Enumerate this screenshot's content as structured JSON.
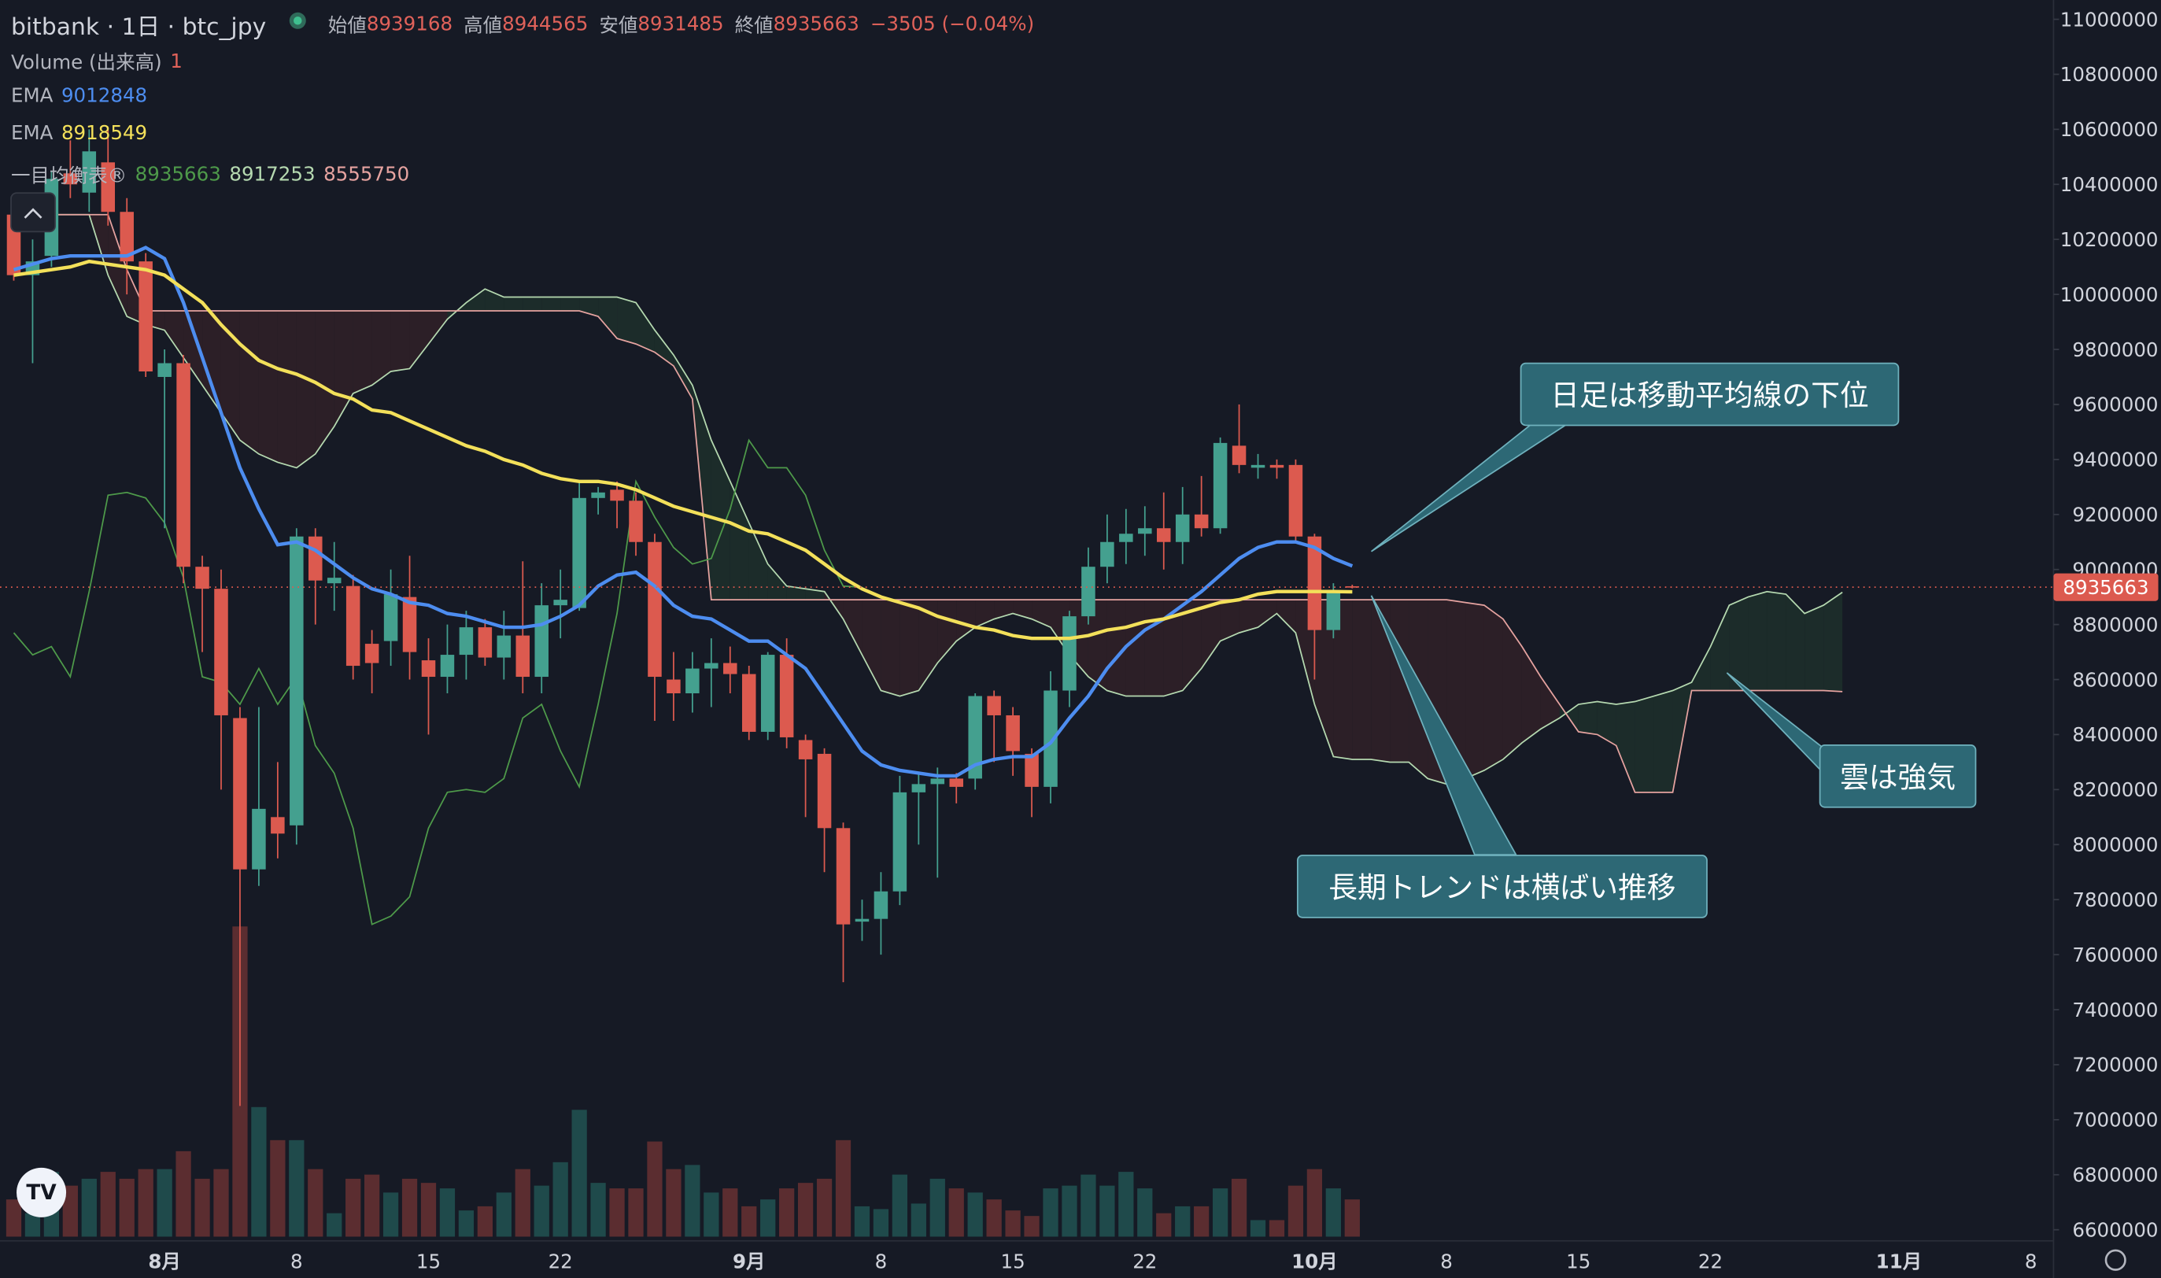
{
  "header": {
    "symbol": "bitbank · 1日 · btc_jpy",
    "open_label": "始値",
    "high_label": "高値",
    "low_label": "安値",
    "close_label": "終値",
    "change": "−3505 (−0.04%)"
  },
  "indicators": {
    "volume_label": "Volume (出来高)",
    "volume_value": 1
  },
  "chart_data": {
    "type": "candlestick",
    "xlim": [
      -0.73,
      108.2
    ],
    "ylim": [
      6600000,
      11000000
    ],
    "yticks": [
      6600000,
      6800000,
      7000000,
      7200000,
      7400000,
      7600000,
      7800000,
      8000000,
      8200000,
      8400000,
      8600000,
      8800000,
      9000000,
      9200000,
      9400000,
      9600000,
      9800000,
      10000000,
      10200000,
      10400000,
      10600000,
      10800000,
      11000000
    ],
    "xticks": [
      {
        "value": 8,
        "label": "8月"
      },
      {
        "value": 15,
        "label": "8"
      },
      {
        "value": 22,
        "label": "15"
      },
      {
        "value": 29,
        "label": "22"
      },
      {
        "value": 39,
        "label": "9月"
      },
      {
        "value": 46,
        "label": "8"
      },
      {
        "value": 53,
        "label": "15"
      },
      {
        "value": 60,
        "label": "22"
      },
      {
        "value": 69,
        "label": "10月"
      },
      {
        "value": 76,
        "label": "8"
      },
      {
        "value": 83,
        "label": "15"
      },
      {
        "value": 90,
        "label": "22"
      },
      {
        "value": 100,
        "label": "11月"
      },
      {
        "value": 107,
        "label": "8"
      }
    ],
    "up_color": "#44a08f",
    "down_color": "#dc5a4f",
    "open": [
      10290000,
      10070000,
      10140000,
      10440000,
      10370000,
      10480000,
      10300000,
      10120000,
      9700000,
      9750000,
      9010000,
      8930000,
      8460000,
      7910000,
      8100000,
      8070000,
      9120000,
      8950000,
      8940000,
      8730000,
      8740000,
      8900000,
      8670000,
      8610000,
      8690000,
      8790000,
      8680000,
      8760000,
      8610000,
      8870000,
      8860000,
      9260000,
      9290000,
      9250000,
      9100000,
      8600000,
      8550000,
      8640000,
      8660000,
      8620000,
      8410000,
      8690000,
      8380000,
      8330000,
      8060000,
      7720000,
      7730000,
      7830000,
      8190000,
      8220000,
      8240000,
      8240000,
      8540000,
      8470000,
      8330000,
      8210000,
      8560000,
      8830000,
      9010000,
      9100000,
      9130000,
      9150000,
      9100000,
      9200000,
      9150000,
      9450000,
      9370000,
      9380000,
      9380000,
      9120000,
      8780000,
      8939168
    ],
    "high": [
      10300000,
      10200000,
      10450000,
      10560000,
      10600000,
      10600000,
      10350000,
      10150000,
      9800000,
      9780000,
      9050000,
      9000000,
      8500000,
      8500000,
      8300000,
      9150000,
      9150000,
      9100000,
      8980000,
      8780000,
      9000000,
      9050000,
      8750000,
      8800000,
      8850000,
      8820000,
      8850000,
      9030000,
      8950000,
      9000000,
      9320000,
      9300000,
      9320000,
      9280000,
      9130000,
      8700000,
      8700000,
      8750000,
      8720000,
      8650000,
      8700000,
      8750000,
      8400000,
      8350000,
      8080000,
      7800000,
      7900000,
      8250000,
      8260000,
      8280000,
      8260000,
      8550000,
      8560000,
      8500000,
      8350000,
      8630000,
      8850000,
      9080000,
      9200000,
      9220000,
      9230000,
      9280000,
      9300000,
      9340000,
      9480000,
      9600000,
      9420000,
      9400000,
      9400000,
      9130000,
      8950000,
      8944565
    ],
    "low": [
      10050000,
      9750000,
      10100000,
      10350000,
      10300000,
      10250000,
      10000000,
      9700000,
      9150000,
      8950000,
      8700000,
      8200000,
      7050000,
      7850000,
      7950000,
      8000000,
      8800000,
      8850000,
      8600000,
      8550000,
      8650000,
      8600000,
      8400000,
      8550000,
      8600000,
      8650000,
      8600000,
      8550000,
      8550000,
      8750000,
      8850000,
      9200000,
      9150000,
      9050000,
      8450000,
      8450000,
      8480000,
      8500000,
      8550000,
      8380000,
      8380000,
      8350000,
      8100000,
      7900000,
      7500000,
      7650000,
      7600000,
      7780000,
      8000000,
      7880000,
      8150000,
      8200000,
      8300000,
      8250000,
      8100000,
      8150000,
      8500000,
      8800000,
      8950000,
      9020000,
      9050000,
      9000000,
      9020000,
      9120000,
      9130000,
      9350000,
      9330000,
      9330000,
      9100000,
      8600000,
      8750000,
      8931485
    ],
    "close": [
      10070000,
      10120000,
      10420000,
      10400000,
      10520000,
      10300000,
      10120000,
      9720000,
      9750000,
      9010000,
      8930000,
      8470000,
      7910000,
      8130000,
      8040000,
      9120000,
      8960000,
      8970000,
      8650000,
      8660000,
      8910000,
      8700000,
      8610000,
      8690000,
      8790000,
      8680000,
      8760000,
      8610000,
      8870000,
      8890000,
      9260000,
      9280000,
      9250000,
      9100000,
      8610000,
      8550000,
      8640000,
      8660000,
      8620000,
      8410000,
      8690000,
      8390000,
      8310000,
      8060000,
      7710000,
      7730000,
      7830000,
      8190000,
      8220000,
      8240000,
      8210000,
      8540000,
      8470000,
      8340000,
      8210000,
      8560000,
      8830000,
      9010000,
      9100000,
      9130000,
      9150000,
      9100000,
      9200000,
      9150000,
      9460000,
      9380000,
      9380000,
      9370000,
      9120000,
      8780000,
      8920000,
      8935663
    ],
    "volume": {
      "vlim": [
        0,
        300
      ],
      "up_color": "#1f4a4b",
      "down_color": "#5b2d30",
      "values": [
        27,
        17,
        47,
        37,
        42,
        47,
        42,
        49,
        49,
        62,
        42,
        49,
        225,
        94,
        70,
        70,
        49,
        17,
        42,
        45,
        32,
        42,
        39,
        35,
        19,
        22,
        32,
        49,
        37,
        54,
        92,
        39,
        35,
        35,
        69,
        49,
        52,
        32,
        35,
        22,
        27,
        35,
        39,
        42,
        70,
        22,
        20,
        45,
        24,
        42,
        35,
        32,
        27,
        19,
        15,
        35,
        37,
        45,
        37,
        47,
        35,
        17,
        22,
        22,
        35,
        42,
        12,
        12,
        37,
        49,
        35,
        27
      ]
    },
    "series": [
      {
        "name": "EMA",
        "color": "#4d8df0",
        "values": [
          10090000,
          10110000,
          10130000,
          10140000,
          10140000,
          10140000,
          10140000,
          10170000,
          10130000,
          9970000,
          9770000,
          9570000,
          9370000,
          9220000,
          9090000,
          9100000,
          9070000,
          9020000,
          8970000,
          8930000,
          8910000,
          8880000,
          8870000,
          8840000,
          8830000,
          8810000,
          8790000,
          8790000,
          8800000,
          8830000,
          8870000,
          8940000,
          8980000,
          8990000,
          8940000,
          8870000,
          8830000,
          8820000,
          8780000,
          8740000,
          8740000,
          8690000,
          8640000,
          8540000,
          8440000,
          8340000,
          8290000,
          8270000,
          8260000,
          8250000,
          8250000,
          8290000,
          8310000,
          8320000,
          8320000,
          8370000,
          8460000,
          8540000,
          8640000,
          8720000,
          8780000,
          8820000,
          8870000,
          8920000,
          8980000,
          9040000,
          9080000,
          9100000,
          9100000,
          9080000,
          9040000,
          9012848
        ]
      },
      {
        "name": "EMA",
        "color": "#f3e05a",
        "values": [
          10070000,
          10080000,
          10090000,
          10100000,
          10120000,
          10110000,
          10100000,
          10090000,
          10070000,
          10020000,
          9970000,
          9890000,
          9820000,
          9760000,
          9730000,
          9710000,
          9680000,
          9640000,
          9620000,
          9580000,
          9570000,
          9540000,
          9510000,
          9480000,
          9450000,
          9430000,
          9400000,
          9380000,
          9350000,
          9330000,
          9320000,
          9320000,
          9310000,
          9290000,
          9260000,
          9230000,
          9210000,
          9190000,
          9170000,
          9140000,
          9130000,
          9100000,
          9070000,
          9020000,
          8970000,
          8930000,
          8900000,
          8880000,
          8860000,
          8830000,
          8810000,
          8790000,
          8780000,
          8760000,
          8750000,
          8750000,
          8750000,
          8760000,
          8780000,
          8790000,
          8810000,
          8820000,
          8840000,
          8860000,
          8880000,
          8890000,
          8910000,
          8920000,
          8920000,
          8920000,
          8920000,
          8918549
        ]
      }
    ],
    "ichimoku": {
      "name": "一目均衡表®",
      "lagging_color": "#4e9a4a",
      "span_a_color": "#b5d9b0",
      "span_b_color": "#e6a3a0",
      "cloud_up_color": "#1c2c2a",
      "cloud_down_color": "#2c1f27",
      "lagging": [
        8770000,
        8690000,
        8720000,
        8610000,
        8920000,
        9270000,
        9280000,
        9260000,
        9170000,
        8970000,
        8610000,
        8590000,
        8510000,
        8640000,
        8510000,
        8610000,
        8360000,
        8260000,
        8060000,
        7710000,
        7740000,
        7810000,
        8060000,
        8190000,
        8200000,
        8190000,
        8240000,
        8460000,
        8510000,
        8340000,
        8210000,
        8510000,
        8840000,
        9320000,
        9190000,
        9080000,
        9020000,
        9040000,
        9220000,
        9470000,
        9370000,
        9370000,
        9270000,
        9070000,
        8940000,
        8935663
      ],
      "span_a": [
        10290000,
        10290000,
        10290000,
        10290000,
        10290000,
        10070000,
        9920000,
        9890000,
        9870000,
        9770000,
        9670000,
        9570000,
        9470000,
        9420000,
        9390000,
        9370000,
        9420000,
        9520000,
        9640000,
        9670000,
        9720000,
        9730000,
        9820000,
        9910000,
        9970000,
        10020000,
        9990000,
        9990000,
        9990000,
        9990000,
        9990000,
        9990000,
        9990000,
        9970000,
        9870000,
        9780000,
        9670000,
        9470000,
        9320000,
        9170000,
        9020000,
        8940000,
        8930000,
        8920000,
        8820000,
        8690000,
        8560000,
        8540000,
        8560000,
        8660000,
        8740000,
        8790000,
        8820000,
        8840000,
        8820000,
        8790000,
        8690000,
        8610000,
        8560000,
        8540000,
        8540000,
        8540000,
        8560000,
        8640000,
        8740000,
        8770000,
        8790000,
        8840000,
        8770000,
        8510000,
        8320000,
        8310000,
        8310000,
        8300000,
        8300000,
        8240000,
        8220000,
        8240000,
        8270000,
        8310000,
        8370000,
        8420000,
        8460000,
        8510000,
        8520000,
        8510000,
        8520000,
        8540000,
        8560000,
        8590000,
        8720000,
        8870000,
        8900000,
        8920000,
        8910000,
        8840000,
        8870000,
        8917253
      ],
      "span_b": [
        10290000,
        10290000,
        10290000,
        10290000,
        10290000,
        10290000,
        10090000,
        9940000,
        9940000,
        9940000,
        9940000,
        9940000,
        9940000,
        9940000,
        9940000,
        9940000,
        9940000,
        9940000,
        9940000,
        9940000,
        9940000,
        9940000,
        9940000,
        9940000,
        9940000,
        9940000,
        9940000,
        9940000,
        9940000,
        9940000,
        9940000,
        9920000,
        9840000,
        9820000,
        9790000,
        9740000,
        9620000,
        8890000,
        8890000,
        8890000,
        8890000,
        8890000,
        8890000,
        8890000,
        8890000,
        8890000,
        8890000,
        8890000,
        8890000,
        8890000,
        8890000,
        8890000,
        8890000,
        8890000,
        8890000,
        8890000,
        8890000,
        8890000,
        8890000,
        8890000,
        8890000,
        8890000,
        8890000,
        8890000,
        8890000,
        8890000,
        8890000,
        8890000,
        8890000,
        8890000,
        8890000,
        8890000,
        8890000,
        8890000,
        8890000,
        8890000,
        8890000,
        8880000,
        8870000,
        8820000,
        8720000,
        8610000,
        8510000,
        8410000,
        8400000,
        8360000,
        8190000,
        8190000,
        8190000,
        8560000,
        8560000,
        8560000,
        8560000,
        8560000,
        8560000,
        8560000,
        8560000,
        8555750
      ]
    },
    "annotations": [
      {
        "text": "日足は移動平均線の下位"
      },
      {
        "text": "長期トレンドは横ばい推移"
      },
      {
        "text": "雲は強気"
      }
    ]
  }
}
